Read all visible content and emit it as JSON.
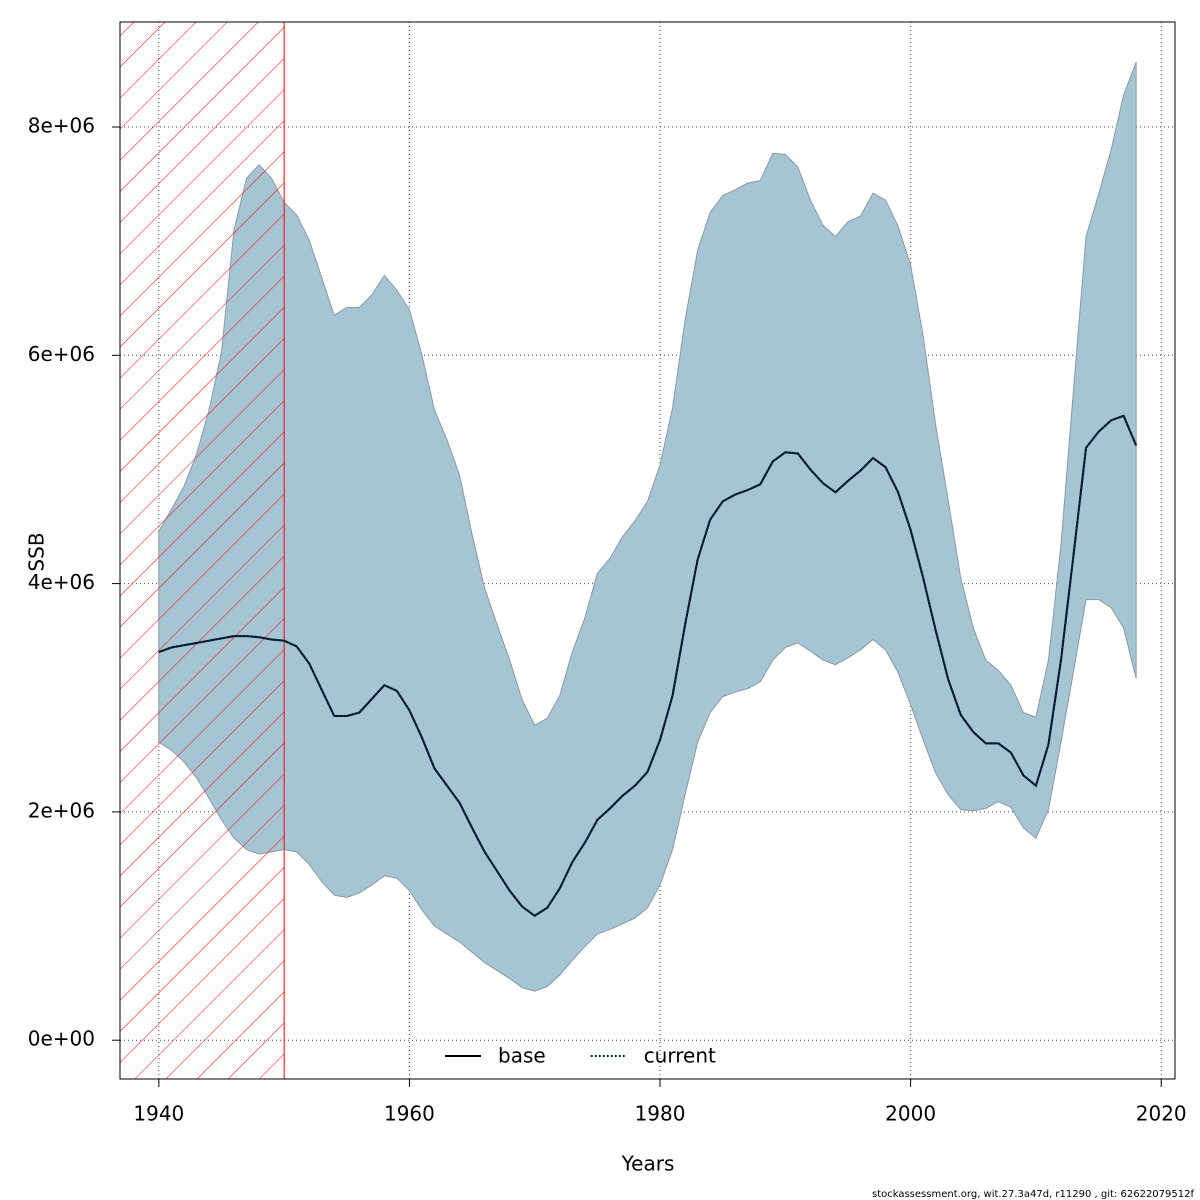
{
  "chart_data": {
    "type": "line",
    "xlabel": "Years",
    "ylabel": "SSB",
    "footer": "stockassessment.org, wit.27.3a47d, r11290 , git: 62622079512f",
    "xlim": [
      1936.9,
      2021.1
    ],
    "ylim": [
      -340000.0,
      8920000.0
    ],
    "xticks": [
      1940,
      1960,
      1980,
      2000,
      2020
    ],
    "yticks": [
      {
        "value": 0,
        "label": "0e+00"
      },
      {
        "value": 2000000.0,
        "label": "2e+06"
      },
      {
        "value": 4000000.0,
        "label": "4e+06"
      },
      {
        "value": 6000000.0,
        "label": "6e+06"
      },
      {
        "value": 8000000.0,
        "label": "8e+06"
      }
    ],
    "grid": true,
    "legend": "bottom",
    "hatched_region": {
      "from": 1936.9,
      "to": 1950,
      "color": "#ff0000"
    },
    "x": [
      1940,
      1941,
      1942,
      1943,
      1944,
      1945,
      1946,
      1947,
      1948,
      1949,
      1950,
      1951,
      1952,
      1953,
      1954,
      1955,
      1956,
      1957,
      1958,
      1959,
      1960,
      1961,
      1962,
      1963,
      1964,
      1965,
      1966,
      1967,
      1968,
      1969,
      1970,
      1971,
      1972,
      1973,
      1974,
      1975,
      1976,
      1977,
      1978,
      1979,
      1980,
      1981,
      1982,
      1983,
      1984,
      1985,
      1986,
      1987,
      1988,
      1989,
      1990,
      1991,
      1992,
      1993,
      1994,
      1995,
      1996,
      1997,
      1998,
      1999,
      2000,
      2001,
      2002,
      2003,
      2004,
      2005,
      2006,
      2007,
      2008,
      2009,
      2010,
      2011,
      2012,
      2013,
      2014,
      2015,
      2016,
      2017,
      2018
    ],
    "band": {
      "color": "#a5c4d4",
      "upper": [
        4460000.0,
        4650000.0,
        4850000.0,
        5130000.0,
        5520000.0,
        6030000.0,
        7100000.0,
        7550000.0,
        7670000.0,
        7550000.0,
        7340000.0,
        7230000.0,
        7010000.0,
        6680000.0,
        6350000.0,
        6420000.0,
        6420000.0,
        6530000.0,
        6700000.0,
        6570000.0,
        6400000.0,
        6000000.0,
        5520000.0,
        5260000.0,
        4950000.0,
        4430000.0,
        3960000.0,
        3640000.0,
        3330000.0,
        2980000.0,
        2760000.0,
        2820000.0,
        3020000.0,
        3400000.0,
        3700000.0,
        4090000.0,
        4220000.0,
        4410000.0,
        4550000.0,
        4720000.0,
        5040000.0,
        5540000.0,
        6310000.0,
        6920000.0,
        7250000.0,
        7400000.0,
        7450000.0,
        7510000.0,
        7530000.0,
        7770000.0,
        7760000.0,
        7650000.0,
        7360000.0,
        7140000.0,
        7040000.0,
        7170000.0,
        7220000.0,
        7420000.0,
        7360000.0,
        7130000.0,
        6790000.0,
        6170000.0,
        5390000.0,
        4730000.0,
        4050000.0,
        3610000.0,
        3330000.0,
        3240000.0,
        3110000.0,
        2870000.0,
        2830000.0,
        3330000.0,
        4340000.0,
        5700000.0,
        7040000.0,
        7410000.0,
        7800000.0,
        8280000.0,
        8570000.0
      ],
      "lower": [
        2610000.0,
        2540000.0,
        2440000.0,
        2300000.0,
        2120000.0,
        1930000.0,
        1770000.0,
        1670000.0,
        1630000.0,
        1650000.0,
        1670000.0,
        1650000.0,
        1540000.0,
        1390000.0,
        1270000.0,
        1250000.0,
        1290000.0,
        1360000.0,
        1440000.0,
        1420000.0,
        1310000.0,
        1140000.0,
        1000000.0,
        930000.0,
        860000.0,
        770000.0,
        680000.0,
        610000.0,
        540000.0,
        460000.0,
        430000.0,
        470000.0,
        570000.0,
        700000.0,
        820000.0,
        930000.0,
        970000.0,
        1020000.0,
        1070000.0,
        1160000.0,
        1360000.0,
        1670000.0,
        2150000.0,
        2610000.0,
        2870000.0,
        3010000.0,
        3050000.0,
        3080000.0,
        3140000.0,
        3330000.0,
        3440000.0,
        3480000.0,
        3410000.0,
        3330000.0,
        3290000.0,
        3350000.0,
        3420000.0,
        3510000.0,
        3420000.0,
        3220000.0,
        2940000.0,
        2630000.0,
        2340000.0,
        2150000.0,
        2020000.0,
        2010000.0,
        2030000.0,
        2090000.0,
        2040000.0,
        1860000.0,
        1770000.0,
        2020000.0,
        2610000.0,
        3230000.0,
        3860000.0,
        3860000.0,
        3790000.0,
        3610000.0,
        3170000.0
      ]
    },
    "series": [
      {
        "name": "base",
        "color": "#000000",
        "style": "solid",
        "values": [
          3400000.0,
          3440000.0,
          3460000.0,
          3480000.0,
          3500000.0,
          3520000.0,
          3540000.0,
          3540000.0,
          3530000.0,
          3510000.0,
          3500000.0,
          3450000.0,
          3300000.0,
          3070000.0,
          2840000.0,
          2840000.0,
          2870000.0,
          2990000.0,
          3110000.0,
          3060000.0,
          2890000.0,
          2650000.0,
          2380000.0,
          2230000.0,
          2080000.0,
          1860000.0,
          1650000.0,
          1480000.0,
          1310000.0,
          1170000.0,
          1090000.0,
          1160000.0,
          1330000.0,
          1560000.0,
          1730000.0,
          1930000.0,
          2030000.0,
          2140000.0,
          2230000.0,
          2350000.0,
          2630000.0,
          3020000.0,
          3640000.0,
          4210000.0,
          4560000.0,
          4720000.0,
          4780000.0,
          4820000.0,
          4870000.0,
          5070000.0,
          5150000.0,
          5140000.0,
          5000000.0,
          4880000.0,
          4800000.0,
          4900000.0,
          4990000.0,
          5100000.0,
          5020000.0,
          4800000.0,
          4470000.0,
          4050000.0,
          3590000.0,
          3160000.0,
          2850000.0,
          2700000.0,
          2600000.0,
          2600000.0,
          2520000.0,
          2320000.0,
          2230000.0,
          2590000.0,
          3330000.0,
          4250000.0,
          5190000.0,
          5330000.0,
          5430000.0,
          5470000.0,
          5210000.0
        ]
      },
      {
        "name": "current",
        "color": "#00305e",
        "style": "dotted",
        "values": [
          3400000.0,
          3440000.0,
          3460000.0,
          3480000.0,
          3500000.0,
          3520000.0,
          3540000.0,
          3540000.0,
          3530000.0,
          3510000.0,
          3500000.0,
          3450000.0,
          3300000.0,
          3070000.0,
          2840000.0,
          2840000.0,
          2870000.0,
          2990000.0,
          3110000.0,
          3060000.0,
          2890000.0,
          2650000.0,
          2380000.0,
          2230000.0,
          2080000.0,
          1860000.0,
          1650000.0,
          1480000.0,
          1310000.0,
          1170000.0,
          1090000.0,
          1160000.0,
          1330000.0,
          1560000.0,
          1730000.0,
          1930000.0,
          2030000.0,
          2140000.0,
          2230000.0,
          2350000.0,
          2630000.0,
          3020000.0,
          3640000.0,
          4210000.0,
          4560000.0,
          4720000.0,
          4780000.0,
          4820000.0,
          4870000.0,
          5070000.0,
          5150000.0,
          5140000.0,
          5000000.0,
          4880000.0,
          4800000.0,
          4900000.0,
          4990000.0,
          5100000.0,
          5020000.0,
          4800000.0,
          4470000.0,
          4050000.0,
          3590000.0,
          3160000.0,
          2850000.0,
          2700000.0,
          2600000.0,
          2600000.0,
          2520000.0,
          2320000.0,
          2230000.0,
          2590000.0,
          3330000.0,
          4250000.0,
          5190000.0,
          5330000.0,
          5430000.0,
          5470000.0,
          5210000.0
        ]
      }
    ]
  }
}
